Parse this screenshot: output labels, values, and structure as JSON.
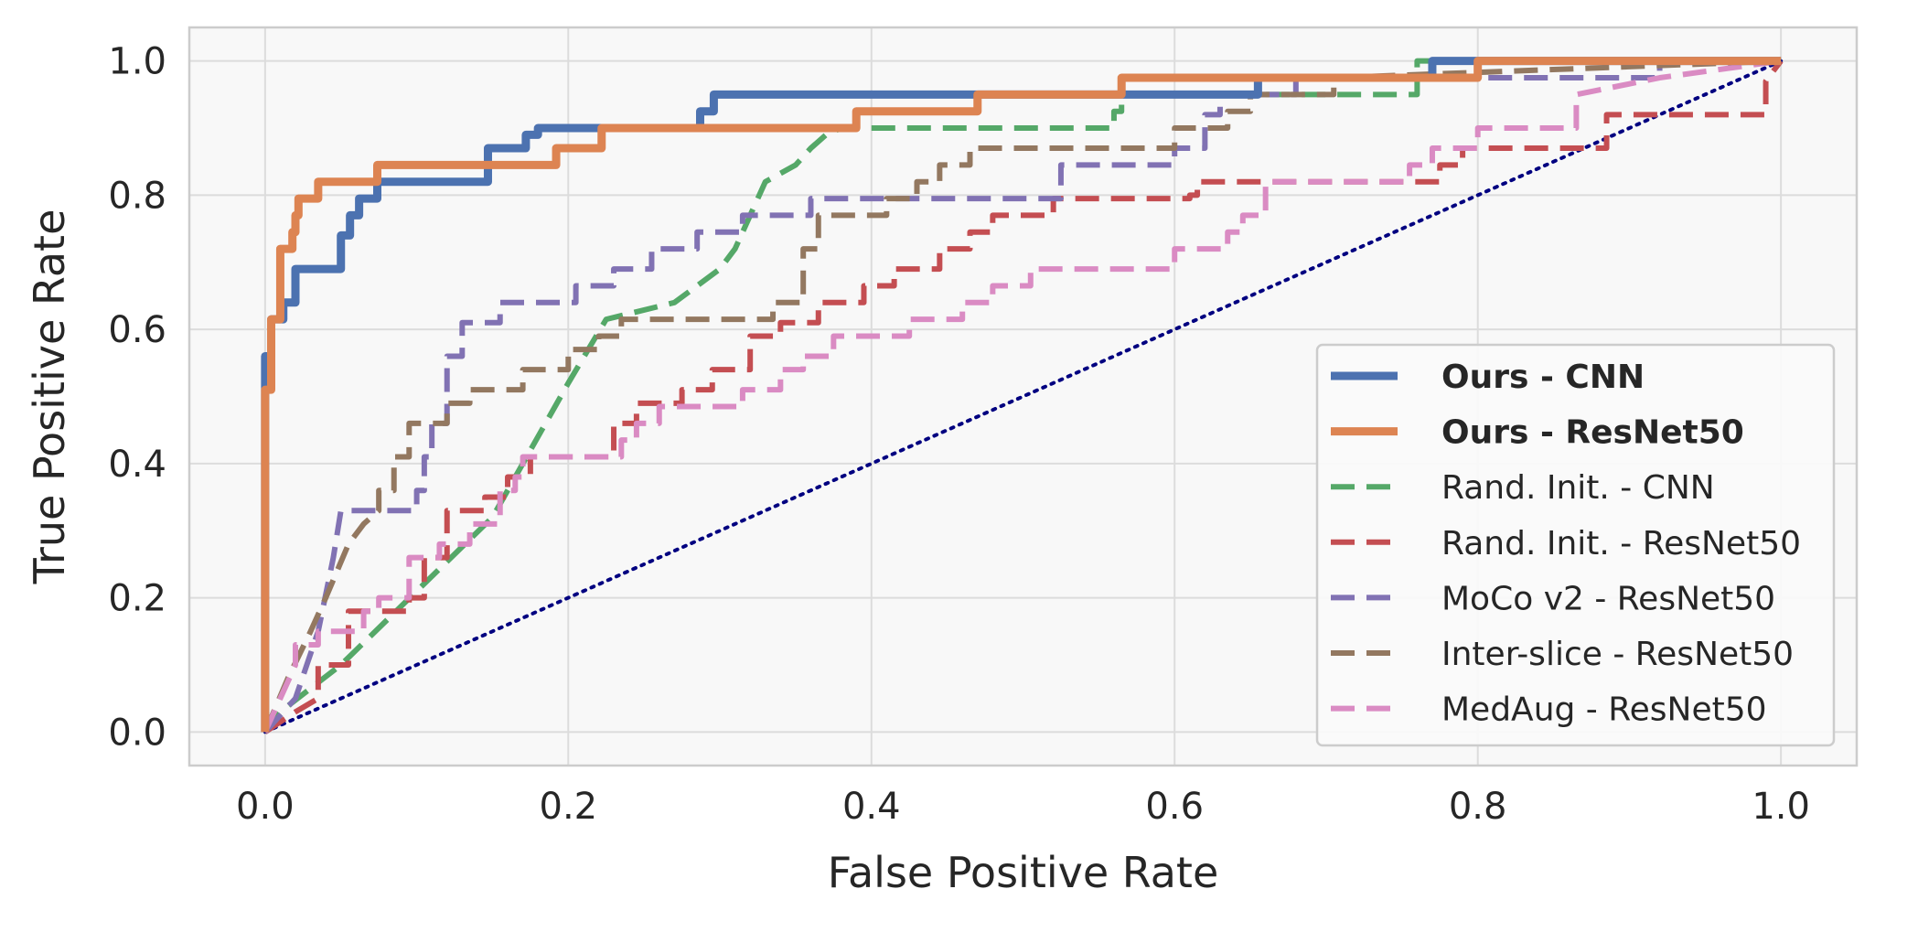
{
  "chart_data": {
    "type": "line",
    "title": "",
    "xlabel": "False Positive Rate",
    "ylabel": "True Positive Rate",
    "xlim": [
      -0.05,
      1.05
    ],
    "ylim": [
      -0.05,
      1.05
    ],
    "xticks": [
      "0.0",
      "0.2",
      "0.4",
      "0.6",
      "0.8",
      "1.0"
    ],
    "yticks": [
      "0.0",
      "0.2",
      "0.4",
      "0.6",
      "0.8",
      "1.0"
    ],
    "grid": true,
    "legend_position": "lower-right",
    "colors": {
      "plot_background": "#f8f8f8",
      "grid": "#dcdcdc",
      "axes_edge": "#cccccc",
      "diagonal": "#000080"
    },
    "diagonal": {
      "x": [
        0,
        1
      ],
      "y": [
        0,
        1
      ],
      "style": "dotted"
    },
    "series": [
      {
        "name": "Ours - CNN",
        "bold": true,
        "style": "solid",
        "color": "#4c72b0",
        "x": [
          0,
          0,
          0.004,
          0.004,
          0.012,
          0.012,
          0.02,
          0.02,
          0.05,
          0.05,
          0.056,
          0.056,
          0.062,
          0.062,
          0.074,
          0.074,
          0.08,
          0.08,
          0.147,
          0.147,
          0.172,
          0.172,
          0.18,
          0.18,
          0.22,
          0.22,
          0.287,
          0.287,
          0.296,
          0.296,
          0.47,
          0.47,
          0.655,
          0.655,
          0.77,
          0.77,
          1.0
        ],
        "y": [
          0,
          0.56,
          0.56,
          0.615,
          0.615,
          0.64,
          0.64,
          0.69,
          0.69,
          0.74,
          0.74,
          0.77,
          0.77,
          0.795,
          0.795,
          0.82,
          0.82,
          0.82,
          0.82,
          0.87,
          0.87,
          0.89,
          0.89,
          0.9,
          0.9,
          0.9,
          0.9,
          0.925,
          0.925,
          0.95,
          0.95,
          0.95,
          0.95,
          0.975,
          0.975,
          1.0,
          1.0
        ]
      },
      {
        "name": "Ours - ResNet50",
        "bold": true,
        "style": "solid",
        "color": "#dd8452",
        "x": [
          0,
          0,
          0.004,
          0.004,
          0.01,
          0.01,
          0.018,
          0.018,
          0.02,
          0.02,
          0.022,
          0.022,
          0.035,
          0.035,
          0.074,
          0.074,
          0.192,
          0.192,
          0.222,
          0.222,
          0.39,
          0.39,
          0.47,
          0.47,
          0.565,
          0.565,
          0.8,
          0.8,
          1.0
        ],
        "y": [
          0,
          0.51,
          0.51,
          0.615,
          0.615,
          0.72,
          0.72,
          0.745,
          0.745,
          0.77,
          0.77,
          0.795,
          0.795,
          0.82,
          0.82,
          0.845,
          0.845,
          0.87,
          0.87,
          0.9,
          0.9,
          0.925,
          0.925,
          0.95,
          0.95,
          0.975,
          0.975,
          1.0,
          1.0
        ]
      },
      {
        "name": "Rand. Init. - CNN",
        "bold": false,
        "style": "dashed",
        "color": "#55a868",
        "x": [
          0,
          0.01,
          0.05,
          0.1,
          0.15,
          0.2,
          0.225,
          0.27,
          0.3,
          0.31,
          0.33,
          0.35,
          0.36,
          0.37,
          0.38,
          0.38,
          0.56,
          0.56,
          0.565,
          0.565,
          0.76,
          0.76,
          1.0
        ],
        "y": [
          0,
          0.03,
          0.1,
          0.21,
          0.32,
          0.52,
          0.615,
          0.64,
          0.69,
          0.72,
          0.82,
          0.845,
          0.87,
          0.89,
          0.9,
          0.9,
          0.9,
          0.925,
          0.925,
          0.95,
          0.95,
          1.0,
          1.0
        ]
      },
      {
        "name": "Rand. Init. - ResNet50",
        "bold": false,
        "style": "dashed",
        "color": "#c44e52",
        "x": [
          0,
          0.02,
          0.035,
          0.035,
          0.055,
          0.055,
          0.095,
          0.095,
          0.105,
          0.105,
          0.12,
          0.12,
          0.145,
          0.145,
          0.16,
          0.16,
          0.175,
          0.175,
          0.23,
          0.23,
          0.245,
          0.245,
          0.275,
          0.275,
          0.295,
          0.295,
          0.32,
          0.32,
          0.34,
          0.34,
          0.365,
          0.365,
          0.395,
          0.395,
          0.415,
          0.415,
          0.445,
          0.445,
          0.465,
          0.465,
          0.48,
          0.48,
          0.52,
          0.52,
          0.575,
          0.575,
          0.61,
          0.61,
          0.615,
          0.615,
          0.775,
          0.775,
          0.79,
          0.79,
          0.885,
          0.885,
          0.96,
          0.96,
          0.99,
          0.99,
          1.0
        ],
        "y": [
          0,
          0.03,
          0.05,
          0.1,
          0.1,
          0.18,
          0.18,
          0.2,
          0.2,
          0.26,
          0.26,
          0.33,
          0.33,
          0.35,
          0.35,
          0.38,
          0.38,
          0.41,
          0.41,
          0.46,
          0.46,
          0.49,
          0.49,
          0.51,
          0.51,
          0.54,
          0.54,
          0.59,
          0.59,
          0.61,
          0.61,
          0.64,
          0.64,
          0.665,
          0.665,
          0.69,
          0.69,
          0.72,
          0.72,
          0.745,
          0.745,
          0.77,
          0.77,
          0.795,
          0.795,
          0.795,
          0.795,
          0.8,
          0.8,
          0.82,
          0.82,
          0.845,
          0.845,
          0.87,
          0.87,
          0.92,
          0.92,
          0.92,
          0.92,
          0.97,
          1.0
        ]
      },
      {
        "name": "MoCo v2 - ResNet50",
        "bold": false,
        "style": "dashed",
        "color": "#8172b3",
        "x": [
          0,
          0.02,
          0.035,
          0.045,
          0.05,
          0.05,
          0.1,
          0.1,
          0.105,
          0.105,
          0.11,
          0.11,
          0.12,
          0.12,
          0.13,
          0.13,
          0.155,
          0.155,
          0.205,
          0.205,
          0.23,
          0.23,
          0.255,
          0.255,
          0.285,
          0.285,
          0.315,
          0.315,
          0.36,
          0.36,
          0.525,
          0.525,
          0.6,
          0.6,
          0.62,
          0.62,
          0.63,
          0.63,
          0.68,
          0.68,
          0.92,
          0.92,
          1.0
        ],
        "y": [
          0,
          0.05,
          0.15,
          0.26,
          0.33,
          0.33,
          0.33,
          0.36,
          0.36,
          0.41,
          0.41,
          0.46,
          0.46,
          0.56,
          0.56,
          0.61,
          0.61,
          0.64,
          0.64,
          0.665,
          0.665,
          0.69,
          0.69,
          0.72,
          0.72,
          0.745,
          0.745,
          0.77,
          0.77,
          0.795,
          0.795,
          0.845,
          0.845,
          0.87,
          0.87,
          0.92,
          0.92,
          0.95,
          0.95,
          0.975,
          0.975,
          1.0,
          1.0
        ]
      },
      {
        "name": "Inter-slice - ResNet50",
        "bold": false,
        "style": "dashed",
        "color": "#937860",
        "x": [
          0,
          0.015,
          0.03,
          0.04,
          0.055,
          0.065,
          0.075,
          0.075,
          0.085,
          0.085,
          0.095,
          0.095,
          0.12,
          0.12,
          0.135,
          0.135,
          0.17,
          0.17,
          0.2,
          0.2,
          0.22,
          0.22,
          0.235,
          0.235,
          0.335,
          0.335,
          0.355,
          0.355,
          0.365,
          0.365,
          0.41,
          0.41,
          0.43,
          0.43,
          0.445,
          0.445,
          0.465,
          0.465,
          0.6,
          0.6,
          0.635,
          0.635,
          0.65,
          0.65,
          0.705,
          0.705,
          1.0
        ],
        "y": [
          0,
          0.08,
          0.15,
          0.2,
          0.28,
          0.31,
          0.33,
          0.36,
          0.36,
          0.41,
          0.41,
          0.46,
          0.46,
          0.49,
          0.49,
          0.51,
          0.51,
          0.54,
          0.54,
          0.57,
          0.57,
          0.59,
          0.59,
          0.615,
          0.615,
          0.64,
          0.64,
          0.72,
          0.72,
          0.77,
          0.77,
          0.795,
          0.795,
          0.82,
          0.82,
          0.845,
          0.845,
          0.87,
          0.87,
          0.9,
          0.9,
          0.925,
          0.925,
          0.95,
          0.95,
          0.975,
          1.0
        ]
      },
      {
        "name": "MedAug - ResNet50",
        "bold": false,
        "style": "dashed",
        "color": "#da8bc3",
        "x": [
          0,
          0.01,
          0.02,
          0.02,
          0.035,
          0.035,
          0.065,
          0.065,
          0.075,
          0.075,
          0.095,
          0.095,
          0.115,
          0.115,
          0.135,
          0.135,
          0.155,
          0.155,
          0.165,
          0.165,
          0.17,
          0.17,
          0.185,
          0.185,
          0.235,
          0.235,
          0.245,
          0.245,
          0.26,
          0.26,
          0.28,
          0.28,
          0.315,
          0.315,
          0.34,
          0.34,
          0.355,
          0.355,
          0.375,
          0.375,
          0.41,
          0.41,
          0.425,
          0.425,
          0.46,
          0.46,
          0.48,
          0.48,
          0.505,
          0.505,
          0.6,
          0.6,
          0.635,
          0.635,
          0.645,
          0.645,
          0.66,
          0.66,
          0.685,
          0.685,
          0.755,
          0.755,
          0.77,
          0.77,
          0.8,
          0.8,
          0.865,
          0.865,
          0.92,
          1.0
        ],
        "y": [
          0,
          0.05,
          0.1,
          0.13,
          0.13,
          0.15,
          0.15,
          0.18,
          0.18,
          0.2,
          0.2,
          0.26,
          0.26,
          0.28,
          0.28,
          0.31,
          0.31,
          0.36,
          0.36,
          0.38,
          0.38,
          0.41,
          0.41,
          0.41,
          0.41,
          0.435,
          0.435,
          0.46,
          0.46,
          0.485,
          0.485,
          0.485,
          0.485,
          0.51,
          0.51,
          0.54,
          0.54,
          0.56,
          0.56,
          0.59,
          0.59,
          0.59,
          0.59,
          0.615,
          0.615,
          0.64,
          0.64,
          0.665,
          0.665,
          0.69,
          0.69,
          0.72,
          0.72,
          0.745,
          0.745,
          0.77,
          0.77,
          0.82,
          0.82,
          0.82,
          0.82,
          0.845,
          0.845,
          0.87,
          0.87,
          0.9,
          0.9,
          0.95,
          0.975,
          1.0
        ]
      }
    ]
  }
}
